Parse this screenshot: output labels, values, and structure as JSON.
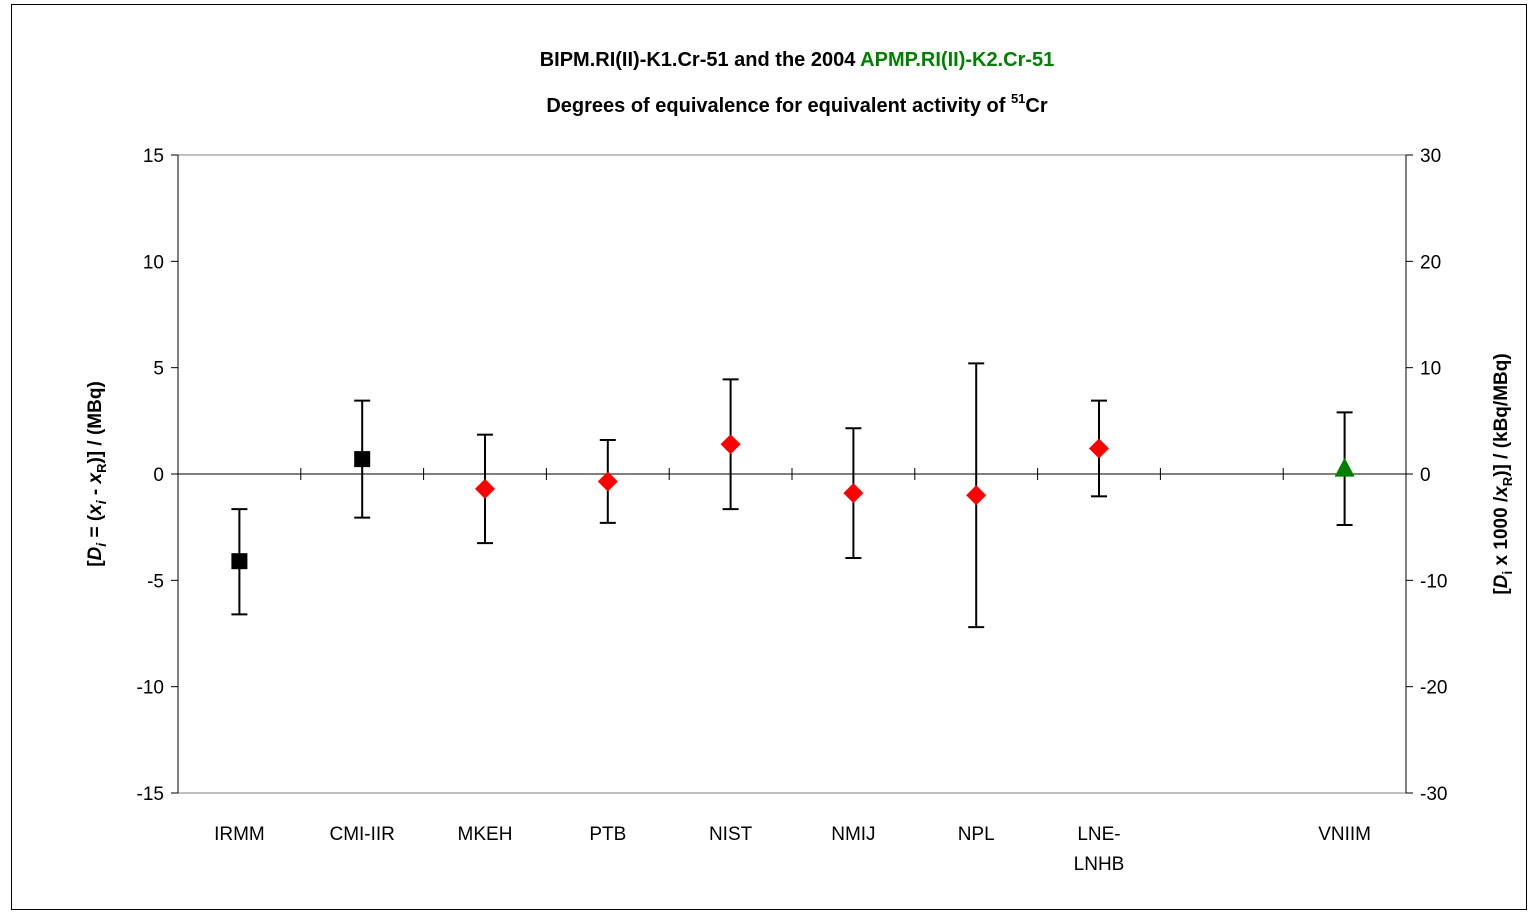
{
  "chart_data": {
    "type": "scatter",
    "title_prefix": "BIPM.RI(II)-K1.Cr-51 and the 2004 ",
    "title_highlight": "APMP.RI(II)-K2.Cr-51",
    "subtitle_prefix": "Degrees of equivalence for equivalent activity of ",
    "subtitle_sup": "51",
    "subtitle_suffix": "Cr",
    "ylabel_left": {
      "p1": "[",
      "D": "D",
      "i": "i",
      "p2": " = (",
      "x": "x",
      "i2": "i",
      "p3": " - ",
      "x2": "x",
      "R": "R",
      "p4": ")] / (MBq)"
    },
    "ylabel_right": {
      "p1": "[",
      "D": "D",
      "i": "i",
      "p2": " x 1000 /",
      "x": "x",
      "R": "R",
      "p3": ")] / (kBq/MBq)"
    },
    "ylim_left": [
      -15,
      15
    ],
    "ylim_right": [
      -30,
      30
    ],
    "yticks_left": [
      "-15",
      "-10",
      "-5",
      "0",
      "5",
      "10",
      "15"
    ],
    "yticks_right": [
      "-30",
      "-20",
      "-10",
      "0",
      "10",
      "20",
      "30"
    ],
    "categories": [
      "IRMM",
      "CMI-IIR",
      "MKEH",
      "PTB",
      "NIST",
      "NMIJ",
      "NPL",
      "LNE-LNHB",
      "",
      "VNIIM"
    ],
    "category_labels": [
      [
        "IRMM"
      ],
      [
        "CMI-IIR"
      ],
      [
        "MKEH"
      ],
      [
        "PTB"
      ],
      [
        "NIST"
      ],
      [
        "NMIJ"
      ],
      [
        "NPL"
      ],
      [
        "LNE-",
        "LNHB"
      ],
      [
        ""
      ],
      [
        "VNIIM"
      ]
    ],
    "series": [
      {
        "marker": "square",
        "color": "#000000",
        "points": [
          {
            "cat": 0,
            "y": -4.1,
            "low": -6.6,
            "high": -1.65
          },
          {
            "cat": 1,
            "y": 0.7,
            "low": -2.05,
            "high": 3.45
          }
        ]
      },
      {
        "marker": "diamond",
        "color": "#ff0000",
        "points": [
          {
            "cat": 2,
            "y": -0.7,
            "low": -3.25,
            "high": 1.85
          },
          {
            "cat": 3,
            "y": -0.35,
            "low": -2.3,
            "high": 1.6
          },
          {
            "cat": 4,
            "y": 1.4,
            "low": -1.65,
            "high": 4.45
          },
          {
            "cat": 5,
            "y": -0.9,
            "low": -3.95,
            "high": 2.15
          },
          {
            "cat": 6,
            "y": -1.0,
            "low": -7.2,
            "high": 5.2
          },
          {
            "cat": 7,
            "y": 1.2,
            "low": -1.05,
            "high": 3.45
          }
        ]
      },
      {
        "marker": "triangle",
        "color": "#008000",
        "points": [
          {
            "cat": 9,
            "y": 0.25,
            "low": -2.4,
            "high": 2.9
          }
        ]
      }
    ],
    "colors": {
      "highlight": "#008000",
      "axis": "#000000",
      "plot_border": "#808080"
    },
    "grid": false,
    "legend": "none"
  }
}
